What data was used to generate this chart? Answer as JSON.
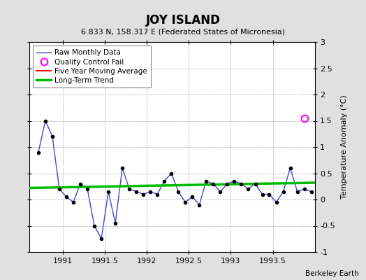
{
  "title": "JOY ISLAND",
  "subtitle": "6.833 N, 158.317 E (Federated States of Micronesia)",
  "attribution": "Berkeley Earth",
  "ylabel": "Temperature Anomaly (°C)",
  "xlim": [
    1990.6,
    1994.0
  ],
  "ylim": [
    -1.0,
    3.0
  ],
  "xticks": [
    1991,
    1991.5,
    1992,
    1992.5,
    1993,
    1993.5
  ],
  "yticks": [
    -1,
    -0.5,
    0,
    0.5,
    1,
    1.5,
    2,
    2.5,
    3
  ],
  "background_color": "#e0e0e0",
  "plot_bg_color": "#ffffff",
  "raw_x": [
    1990.708,
    1990.792,
    1990.875,
    1990.958,
    1991.042,
    1991.125,
    1991.208,
    1991.292,
    1991.375,
    1991.458,
    1991.542,
    1991.625,
    1991.708,
    1991.792,
    1991.875,
    1991.958,
    1992.042,
    1992.125,
    1992.208,
    1992.292,
    1992.375,
    1992.458,
    1992.542,
    1992.625,
    1992.708,
    1992.792,
    1992.875,
    1992.958,
    1993.042,
    1993.125,
    1993.208,
    1993.292,
    1993.375,
    1993.458,
    1993.542,
    1993.625,
    1993.708,
    1993.792,
    1993.875,
    1993.958
  ],
  "raw_y": [
    0.9,
    1.5,
    1.2,
    0.2,
    0.05,
    -0.05,
    0.3,
    0.2,
    -0.5,
    -0.75,
    0.15,
    -0.45,
    0.6,
    0.2,
    0.15,
    0.1,
    0.15,
    0.1,
    0.35,
    0.5,
    0.15,
    -0.05,
    0.05,
    -0.1,
    0.35,
    0.3,
    0.15,
    0.3,
    0.35,
    0.3,
    0.2,
    0.3,
    0.1,
    0.1,
    -0.05,
    0.15,
    0.6,
    0.15,
    0.2,
    0.15
  ],
  "qc_fail_x": [
    1993.875
  ],
  "qc_fail_y": [
    1.55
  ],
  "trend_x": [
    1990.6,
    1994.0
  ],
  "trend_y": [
    0.22,
    0.32
  ],
  "raw_line_color": "#4444cc",
  "trend_color": "#00bb00",
  "moving_avg_color": "#ff0000",
  "qc_color": "#ff00ff",
  "legend_raw_label": "Raw Monthly Data",
  "legend_qc_label": "Quality Control Fail",
  "legend_ma_label": "Five Year Moving Average",
  "legend_trend_label": "Long-Term Trend"
}
